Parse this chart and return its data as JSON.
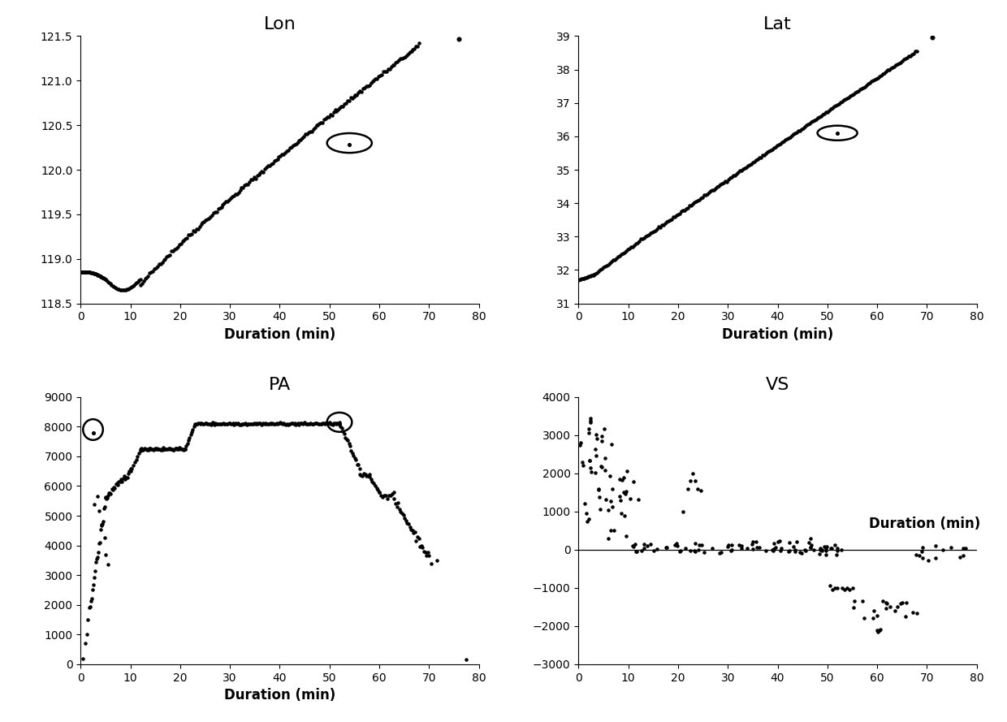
{
  "lon_title": "Lon",
  "lat_title": "Lat",
  "pa_title": "PA",
  "vs_title": "VS",
  "xlabel": "Duration (min)",
  "lon_ylim": [
    118.5,
    121.5
  ],
  "lon_xlim": [
    0,
    80
  ],
  "lat_ylim": [
    31,
    39
  ],
  "lat_xlim": [
    0,
    80
  ],
  "pa_ylim": [
    0,
    9000
  ],
  "pa_xlim": [
    0,
    80
  ],
  "vs_ylim": [
    -3000,
    4000
  ],
  "vs_xlim": [
    0,
    80
  ],
  "title_fontsize": 16,
  "label_fontsize": 12,
  "tick_fontsize": 10,
  "dot_color": "black",
  "dot_size": 5,
  "background_color": "white",
  "lon_yticks": [
    118.5,
    119,
    119.5,
    120,
    120.5,
    121,
    121.5
  ],
  "lat_yticks": [
    31,
    32,
    33,
    34,
    35,
    36,
    37,
    38,
    39
  ],
  "pa_yticks": [
    0,
    1000,
    2000,
    3000,
    4000,
    5000,
    6000,
    7000,
    8000,
    9000
  ],
  "vs_yticks": [
    -3000,
    -2000,
    -1000,
    0,
    1000,
    2000,
    3000,
    4000
  ],
  "xticks": [
    0,
    10,
    20,
    30,
    40,
    50,
    60,
    70,
    80
  ]
}
